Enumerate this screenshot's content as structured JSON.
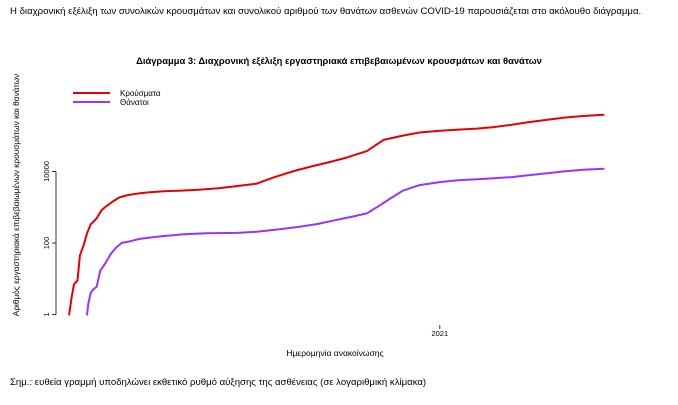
{
  "intro_text": "Η διαχρονική εξέλιξη των συνολικών κρουσμάτων και συνολικού αριθμού των θανάτων ασθενών COVID-19 παρουσιάζεται στο ακόλουθο διάγραμμα.",
  "footnote": "Σημ.: ευθεία γραμμή υποδηλώνει εκθετικό ρυθμό αύξησης της ασθένειας (σε λογαριθμική κλίμακα)",
  "chart_data": {
    "type": "line",
    "title": "Διάγραμμα 3: Διαχρονική εξέλιξη εργαστηριακά επιβεβαιωμένων κρουσμάτων και θανάτων",
    "xlabel": "Ημερομηνία ανακοίνωσης",
    "ylabel": "Αριθμός εργαστηριακά επιβεβαιωμένων κρουσμάτων και θανάτων",
    "y_scale": "log",
    "y_ticks": [
      1,
      100,
      10000
    ],
    "y_tick_labels": [
      "1",
      "100",
      "10000"
    ],
    "x_ticks": [
      "2021-01-01"
    ],
    "x_tick_labels": [
      "2021"
    ],
    "xlim": [
      "2020-02-20",
      "2021-05-25"
    ],
    "ylim": [
      0.8,
      5000000
    ],
    "legend_position": "top-left",
    "grid": false,
    "series": [
      {
        "name": "Κρούσματα",
        "color": "#e60000",
        "points": [
          [
            "2020-02-26",
            1
          ],
          [
            "2020-02-28",
            3
          ],
          [
            "2020-03-01",
            7
          ],
          [
            "2020-03-04",
            9
          ],
          [
            "2020-03-06",
            45
          ],
          [
            "2020-03-09",
            84
          ],
          [
            "2020-03-12",
            190
          ],
          [
            "2020-03-15",
            331
          ],
          [
            "2020-03-18",
            418
          ],
          [
            "2020-03-20",
            495
          ],
          [
            "2020-03-24",
            821
          ],
          [
            "2020-03-28",
            1061
          ],
          [
            "2020-04-02",
            1415
          ],
          [
            "2020-04-08",
            1884
          ],
          [
            "2020-04-15",
            2192
          ],
          [
            "2020-04-22",
            2401
          ],
          [
            "2020-05-01",
            2591
          ],
          [
            "2020-05-15",
            2819
          ],
          [
            "2020-06-01",
            2937
          ],
          [
            "2020-06-15",
            3121
          ],
          [
            "2020-07-01",
            3432
          ],
          [
            "2020-07-15",
            3910
          ],
          [
            "2020-08-01",
            4587
          ],
          [
            "2020-08-15",
            6858
          ],
          [
            "2020-09-01",
            10317
          ],
          [
            "2020-09-15",
            13730
          ],
          [
            "2020-10-01",
            18475
          ],
          [
            "2020-10-15",
            24492
          ],
          [
            "2020-11-01",
            37196
          ],
          [
            "2020-11-15",
            76403
          ],
          [
            "2020-12-01",
            101287
          ],
          [
            "2020-12-15",
            123534
          ],
          [
            "2021-01-01",
            138850
          ],
          [
            "2021-01-15",
            148068
          ],
          [
            "2021-02-01",
            158716
          ],
          [
            "2021-02-15",
            174524
          ],
          [
            "2021-03-01",
            199949
          ],
          [
            "2021-03-15",
            236689
          ],
          [
            "2021-04-01",
            280717
          ],
          [
            "2021-04-15",
            321989
          ],
          [
            "2021-05-01",
            356424
          ],
          [
            "2021-05-18",
            388052
          ]
        ]
      },
      {
        "name": "Θάνατοι",
        "color": "#9933ff",
        "points": [
          [
            "2020-03-12",
            1
          ],
          [
            "2020-03-13",
            2
          ],
          [
            "2020-03-15",
            4
          ],
          [
            "2020-03-17",
            5
          ],
          [
            "2020-03-20",
            6
          ],
          [
            "2020-03-23",
            17
          ],
          [
            "2020-03-27",
            26
          ],
          [
            "2020-04-01",
            50
          ],
          [
            "2020-04-05",
            73
          ],
          [
            "2020-04-10",
            101
          ],
          [
            "2020-04-15",
            108
          ],
          [
            "2020-04-25",
            130
          ],
          [
            "2020-05-10",
            151
          ],
          [
            "2020-06-01",
            175
          ],
          [
            "2020-06-20",
            188
          ],
          [
            "2020-07-15",
            192
          ],
          [
            "2020-08-01",
            206
          ],
          [
            "2020-08-20",
            242
          ],
          [
            "2020-09-05",
            283
          ],
          [
            "2020-09-20",
            339
          ],
          [
            "2020-10-05",
            432
          ],
          [
            "2020-10-20",
            548
          ],
          [
            "2020-11-01",
            673
          ],
          [
            "2020-11-10",
            1035
          ],
          [
            "2020-11-20",
            1702
          ],
          [
            "2020-12-01",
            2902
          ],
          [
            "2020-12-15",
            4171
          ],
          [
            "2021-01-01",
            5051
          ],
          [
            "2021-01-15",
            5636
          ],
          [
            "2021-02-01",
            6090
          ],
          [
            "2021-02-15",
            6468
          ],
          [
            "2021-03-01",
            6936
          ],
          [
            "2021-03-15",
            7782
          ],
          [
            "2021-04-01",
            8892
          ],
          [
            "2021-04-15",
            10053
          ],
          [
            "2021-05-01",
            11207
          ],
          [
            "2021-05-18",
            11950
          ]
        ]
      }
    ]
  }
}
